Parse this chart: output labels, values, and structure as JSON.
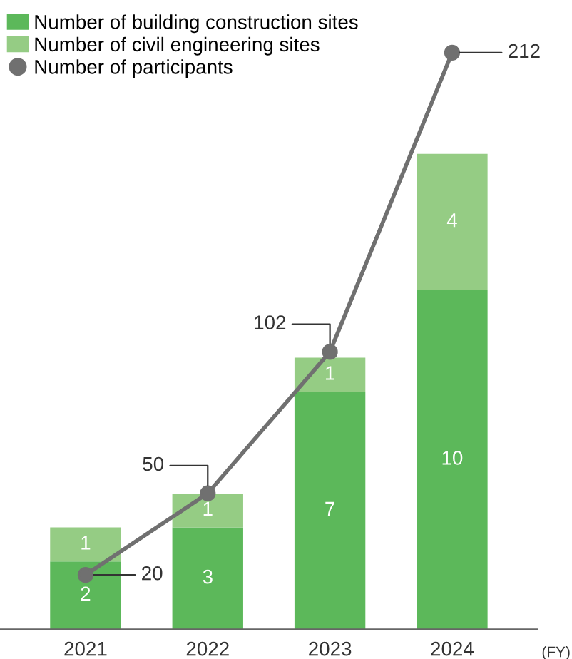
{
  "chart_data": {
    "type": "bar",
    "stacked": true,
    "categories": [
      "2021",
      "2022",
      "2023",
      "2024"
    ],
    "xlabel": "(FY)",
    "series": [
      {
        "name": "Number of building construction sites",
        "color": "#5cb85a",
        "values": [
          2,
          3,
          7,
          10
        ]
      },
      {
        "name": "Number of civil engineering sites",
        "color": "#95cc84",
        "values": [
          1,
          1,
          1,
          4
        ]
      },
      {
        "name": "Number of participants",
        "type": "line",
        "axis": "y2",
        "color": "#707070",
        "marker": "circle",
        "values": [
          20,
          50,
          102,
          212
        ]
      }
    ],
    "data_labels": true,
    "legend": "top left",
    "grid": false,
    "tick_labels": "x"
  }
}
